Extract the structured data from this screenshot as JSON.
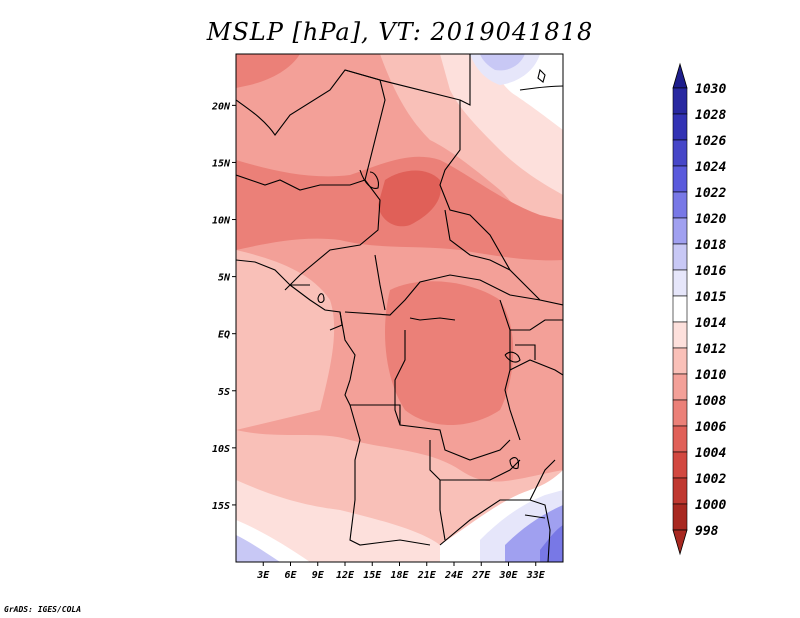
{
  "title": "MSLP [hPa], VT: 2019041818",
  "credit": "GrADS: IGES/COLA",
  "map": {
    "variable": "MSLP",
    "units": "hPa",
    "valid_time": "2019041818",
    "region": "Central Africa",
    "lat_range": [
      -20,
      25
    ],
    "lon_range": [
      0,
      36
    ],
    "lat_ticks": [
      {
        "value": 20,
        "label": "20N"
      },
      {
        "value": 15,
        "label": "15N"
      },
      {
        "value": 10,
        "label": "10N"
      },
      {
        "value": 5,
        "label": "5N"
      },
      {
        "value": 0,
        "label": "EQ"
      },
      {
        "value": -5,
        "label": "5S"
      },
      {
        "value": -10,
        "label": "10S"
      },
      {
        "value": -15,
        "label": "15S"
      }
    ],
    "lon_ticks": [
      {
        "value": 3,
        "label": "3E"
      },
      {
        "value": 6,
        "label": "6E"
      },
      {
        "value": 9,
        "label": "9E"
      },
      {
        "value": 12,
        "label": "12E"
      },
      {
        "value": 15,
        "label": "15E"
      },
      {
        "value": 18,
        "label": "18E"
      },
      {
        "value": 21,
        "label": "21E"
      },
      {
        "value": 24,
        "label": "24E"
      },
      {
        "value": 27,
        "label": "27E"
      },
      {
        "value": 30,
        "label": "30E"
      },
      {
        "value": 33,
        "label": "33E"
      }
    ]
  },
  "colorbar": {
    "levels": [
      {
        "label": "1030",
        "color": "#1e1e8c"
      },
      {
        "label": "1028",
        "color": "#2828a0"
      },
      {
        "label": "1026",
        "color": "#3232b4"
      },
      {
        "label": "1024",
        "color": "#4646c8"
      },
      {
        "label": "1022",
        "color": "#5a5adc"
      },
      {
        "label": "1020",
        "color": "#7878e6"
      },
      {
        "label": "1018",
        "color": "#a0a0f0"
      },
      {
        "label": "1016",
        "color": "#c8c8f5"
      },
      {
        "label": "1015",
        "color": "#e6e6fa"
      },
      {
        "label": "1014",
        "color": "#ffffff"
      },
      {
        "label": "1012",
        "color": "#fde0dc"
      },
      {
        "label": "1010",
        "color": "#f9c0b8"
      },
      {
        "label": "1008",
        "color": "#f3a098"
      },
      {
        "label": "1006",
        "color": "#eb8078"
      },
      {
        "label": "1004",
        "color": "#e06058"
      },
      {
        "label": "1002",
        "color": "#d24840"
      },
      {
        "label": "1000",
        "color": "#c03830"
      },
      {
        "label": "998",
        "color": "#a82820"
      }
    ],
    "top_color": "#1e1e8c",
    "bottom_color": "#a82820"
  }
}
